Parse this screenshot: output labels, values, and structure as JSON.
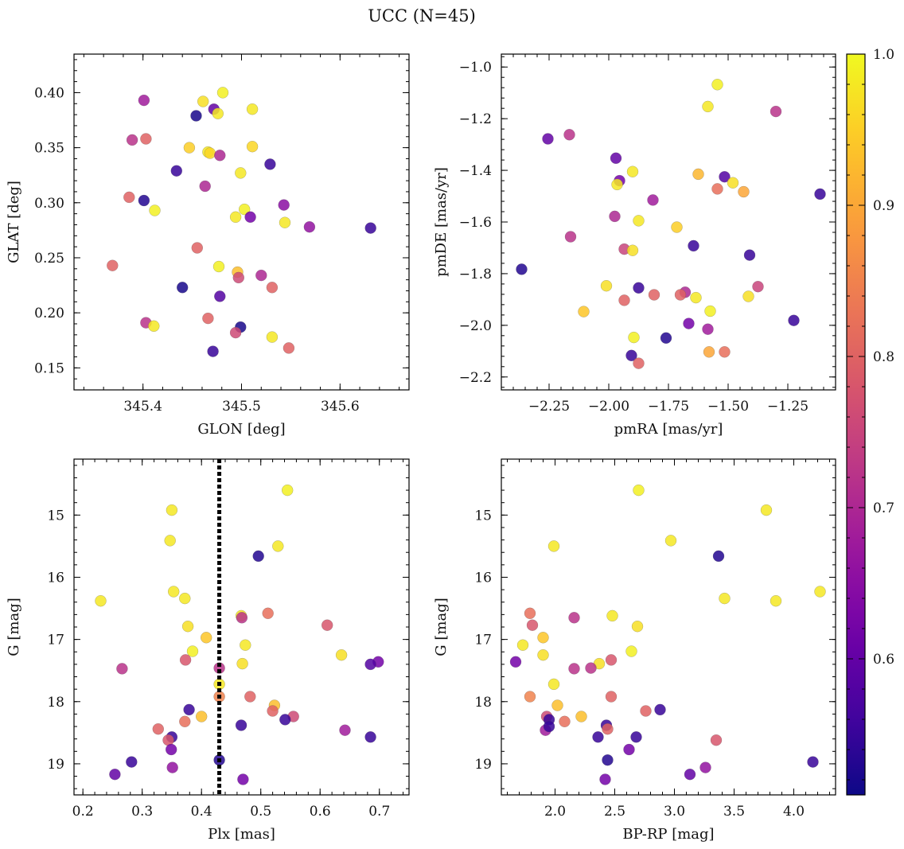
{
  "figure": {
    "title": "UCC (N=45)"
  },
  "colorbar": {
    "range": [
      0.51,
      1.0
    ],
    "ticks": [
      0.6,
      0.7,
      0.8,
      0.9,
      1.0
    ],
    "tick_labels": [
      "0.6",
      "0.7",
      "0.8",
      "0.9",
      "1.0"
    ],
    "colormap": "plasma",
    "palette": [
      "#0d0887",
      "#46039f",
      "#7201a8",
      "#9c179e",
      "#bd3786",
      "#d8576b",
      "#ed7953",
      "#fb9f3a",
      "#fdca26",
      "#f0f921"
    ]
  },
  "chart_data": [
    {
      "id": "sky",
      "type": "scatter",
      "xlabel": "GLON [deg]",
      "ylabel": "GLAT [deg]",
      "xlim": [
        345.33,
        345.67
      ],
      "ylim": [
        0.13,
        0.435
      ],
      "xticks": [
        345.4,
        345.5,
        345.6
      ],
      "xtick_labels": [
        "345.4",
        "345.5",
        "345.6"
      ],
      "yticks": [
        0.15,
        0.2,
        0.25,
        0.3,
        0.35,
        0.4
      ],
      "ytick_labels": [
        "0.15",
        "0.20",
        "0.25",
        "0.30",
        "0.35",
        "0.40"
      ],
      "points": [
        [
          345.401,
          0.393,
          0.68
        ],
        [
          345.461,
          0.392,
          0.97
        ],
        [
          345.481,
          0.4,
          0.99
        ],
        [
          345.454,
          0.379,
          0.52
        ],
        [
          345.472,
          0.385,
          0.6
        ],
        [
          345.476,
          0.381,
          0.98
        ],
        [
          345.511,
          0.385,
          0.98
        ],
        [
          345.389,
          0.357,
          0.72
        ],
        [
          345.403,
          0.358,
          0.8
        ],
        [
          345.447,
          0.35,
          0.95
        ],
        [
          345.466,
          0.346,
          0.98
        ],
        [
          345.468,
          0.345,
          0.96
        ],
        [
          345.478,
          0.343,
          0.7
        ],
        [
          345.511,
          0.351,
          0.96
        ],
        [
          345.434,
          0.329,
          0.55
        ],
        [
          345.499,
          0.327,
          0.98
        ],
        [
          345.529,
          0.335,
          0.55
        ],
        [
          345.463,
          0.315,
          0.7
        ],
        [
          345.386,
          0.305,
          0.8
        ],
        [
          345.401,
          0.302,
          0.53
        ],
        [
          345.412,
          0.293,
          0.99
        ],
        [
          345.503,
          0.294,
          0.99
        ],
        [
          345.494,
          0.287,
          0.98
        ],
        [
          345.509,
          0.287,
          0.62
        ],
        [
          345.543,
          0.298,
          0.65
        ],
        [
          345.544,
          0.282,
          0.98
        ],
        [
          345.569,
          0.278,
          0.66
        ],
        [
          345.631,
          0.277,
          0.55
        ],
        [
          345.455,
          0.259,
          0.8
        ],
        [
          345.369,
          0.243,
          0.8
        ],
        [
          345.477,
          0.242,
          0.99
        ],
        [
          345.496,
          0.237,
          0.93
        ],
        [
          345.497,
          0.232,
          0.76
        ],
        [
          345.52,
          0.234,
          0.7
        ],
        [
          345.531,
          0.223,
          0.8
        ],
        [
          345.44,
          0.223,
          0.52
        ],
        [
          345.478,
          0.215,
          0.58
        ],
        [
          345.466,
          0.195,
          0.8
        ],
        [
          345.403,
          0.191,
          0.72
        ],
        [
          345.411,
          0.188,
          0.98
        ],
        [
          345.499,
          0.187,
          0.52
        ],
        [
          345.494,
          0.182,
          0.76
        ],
        [
          345.531,
          0.178,
          0.98
        ],
        [
          345.548,
          0.168,
          0.8
        ],
        [
          345.471,
          0.165,
          0.55
        ]
      ]
    },
    {
      "id": "pm",
      "type": "scatter",
      "xlabel": "pmRA [mas/yr]",
      "ylabel": "pmDE [mas/yr]",
      "xlim": [
        -2.45,
        -1.05
      ],
      "ylim": [
        -2.25,
        -0.95
      ],
      "xticks": [
        -2.25,
        -2.0,
        -1.75,
        -1.5,
        -1.25
      ],
      "xtick_labels": [
        "−2.25",
        "−2.00",
        "−1.75",
        "−1.50",
        "−1.25"
      ],
      "yticks": [
        -2.2,
        -2.0,
        -1.8,
        -1.6,
        -1.4,
        -1.2,
        -1.0
      ],
      "ytick_labels": [
        "−2.2",
        "−2.0",
        "−1.8",
        "−1.6",
        "−1.4",
        "−1.2",
        "−1.0"
      ],
      "points": [
        [
          -1.545,
          -1.068,
          0.99
        ],
        [
          -1.585,
          -1.153,
          0.98
        ],
        [
          -1.3,
          -1.172,
          0.72
        ],
        [
          -2.165,
          -1.262,
          0.72
        ],
        [
          -2.255,
          -1.278,
          0.6
        ],
        [
          -1.97,
          -1.353,
          0.6
        ],
        [
          -1.625,
          -1.415,
          0.92
        ],
        [
          -1.515,
          -1.425,
          0.58
        ],
        [
          -1.9,
          -1.405,
          0.98
        ],
        [
          -1.955,
          -1.44,
          0.62
        ],
        [
          -1.965,
          -1.455,
          0.98
        ],
        [
          -1.545,
          -1.472,
          0.82
        ],
        [
          -1.48,
          -1.448,
          0.97
        ],
        [
          -1.435,
          -1.483,
          0.9
        ],
        [
          -1.115,
          -1.492,
          0.55
        ],
        [
          -1.815,
          -1.515,
          0.68
        ],
        [
          -1.975,
          -1.578,
          0.7
        ],
        [
          -1.875,
          -1.595,
          0.98
        ],
        [
          -1.715,
          -1.62,
          0.95
        ],
        [
          -2.16,
          -1.657,
          0.72
        ],
        [
          -1.645,
          -1.692,
          0.55
        ],
        [
          -1.935,
          -1.705,
          0.75
        ],
        [
          -1.9,
          -1.71,
          0.97
        ],
        [
          -1.41,
          -1.728,
          0.55
        ],
        [
          -2.365,
          -1.783,
          0.53
        ],
        [
          -2.01,
          -1.847,
          0.97
        ],
        [
          -1.875,
          -1.855,
          0.55
        ],
        [
          -1.375,
          -1.85,
          0.75
        ],
        [
          -1.68,
          -1.872,
          0.7
        ],
        [
          -1.7,
          -1.882,
          0.8
        ],
        [
          -1.81,
          -1.882,
          0.8
        ],
        [
          -1.635,
          -1.893,
          0.98
        ],
        [
          -1.935,
          -1.903,
          0.8
        ],
        [
          -1.415,
          -1.888,
          0.97
        ],
        [
          -2.105,
          -1.947,
          0.94
        ],
        [
          -1.575,
          -1.945,
          0.99
        ],
        [
          -1.665,
          -1.993,
          0.62
        ],
        [
          -1.225,
          -1.981,
          0.55
        ],
        [
          -1.585,
          -2.015,
          0.68
        ],
        [
          -1.895,
          -2.047,
          0.99
        ],
        [
          -1.76,
          -2.049,
          0.53
        ],
        [
          -1.905,
          -2.117,
          0.55
        ],
        [
          -1.58,
          -2.103,
          0.9
        ],
        [
          -1.515,
          -2.103,
          0.82
        ],
        [
          -1.875,
          -2.147,
          0.8
        ]
      ]
    },
    {
      "id": "plx",
      "type": "scatter",
      "xlabel": "Plx [mas]",
      "ylabel": "G [mag]",
      "xlim": [
        0.185,
        0.75
      ],
      "ylim": [
        19.5,
        14.1
      ],
      "y_inverted": true,
      "xticks": [
        0.2,
        0.3,
        0.4,
        0.5,
        0.6,
        0.7
      ],
      "xtick_labels": [
        "0.2",
        "0.3",
        "0.4",
        "0.5",
        "0.6",
        "0.7"
      ],
      "yticks": [
        15,
        16,
        17,
        18,
        19
      ],
      "ytick_labels": [
        "15",
        "16",
        "17",
        "18",
        "19"
      ],
      "vline": 0.43,
      "points": [
        [
          0.545,
          14.6,
          0.99
        ],
        [
          0.35,
          14.92,
          0.98
        ],
        [
          0.347,
          15.41,
          0.98
        ],
        [
          0.529,
          15.5,
          0.98
        ],
        [
          0.496,
          15.66,
          0.53
        ],
        [
          0.353,
          16.23,
          0.98
        ],
        [
          0.372,
          16.34,
          0.98
        ],
        [
          0.23,
          16.38,
          0.98
        ],
        [
          0.512,
          16.58,
          0.82
        ],
        [
          0.467,
          16.62,
          0.98
        ],
        [
          0.468,
          16.65,
          0.72
        ],
        [
          0.612,
          16.77,
          0.78
        ],
        [
          0.377,
          16.79,
          0.97
        ],
        [
          0.408,
          16.97,
          0.94
        ],
        [
          0.474,
          17.09,
          0.98
        ],
        [
          0.385,
          17.19,
          0.99
        ],
        [
          0.636,
          17.25,
          0.97
        ],
        [
          0.373,
          17.33,
          0.78
        ],
        [
          0.469,
          17.39,
          0.97
        ],
        [
          0.698,
          17.36,
          0.62
        ],
        [
          0.685,
          17.4,
          0.58
        ],
        [
          0.266,
          17.47,
          0.72
        ],
        [
          0.43,
          17.46,
          0.72
        ],
        [
          0.43,
          17.72,
          0.98
        ],
        [
          0.43,
          17.92,
          0.85
        ],
        [
          0.482,
          17.92,
          0.8
        ],
        [
          0.523,
          18.06,
          0.93
        ],
        [
          0.52,
          18.15,
          0.8
        ],
        [
          0.379,
          18.13,
          0.55
        ],
        [
          0.4,
          18.24,
          0.93
        ],
        [
          0.555,
          18.24,
          0.76
        ],
        [
          0.541,
          18.29,
          0.55
        ],
        [
          0.372,
          18.32,
          0.82
        ],
        [
          0.467,
          18.38,
          0.55
        ],
        [
          0.327,
          18.44,
          0.8
        ],
        [
          0.642,
          18.46,
          0.68
        ],
        [
          0.35,
          18.57,
          0.55
        ],
        [
          0.685,
          18.57,
          0.55
        ],
        [
          0.344,
          18.62,
          0.78
        ],
        [
          0.349,
          18.77,
          0.62
        ],
        [
          0.43,
          18.94,
          0.53
        ],
        [
          0.282,
          18.97,
          0.55
        ],
        [
          0.351,
          19.06,
          0.66
        ],
        [
          0.254,
          19.17,
          0.6
        ],
        [
          0.47,
          19.25,
          0.62
        ]
      ]
    },
    {
      "id": "cmd",
      "type": "scatter",
      "xlabel": "BP-RP [mag]",
      "ylabel": "G [mag]",
      "xlim": [
        1.55,
        4.35
      ],
      "ylim": [
        19.5,
        14.1
      ],
      "y_inverted": true,
      "xticks": [
        2.0,
        2.5,
        3.0,
        3.5,
        4.0
      ],
      "xtick_labels": [
        "2.0",
        "2.5",
        "3.0",
        "3.5",
        "4.0"
      ],
      "yticks": [
        15,
        16,
        17,
        18,
        19
      ],
      "ytick_labels": [
        "15",
        "16",
        "17",
        "18",
        "19"
      ],
      "points": [
        [
          2.7,
          14.6,
          0.99
        ],
        [
          3.77,
          14.92,
          0.98
        ],
        [
          2.97,
          15.41,
          0.98
        ],
        [
          1.99,
          15.5,
          0.98
        ],
        [
          3.37,
          15.66,
          0.53
        ],
        [
          4.22,
          16.23,
          0.98
        ],
        [
          3.42,
          16.34,
          0.98
        ],
        [
          3.85,
          16.38,
          0.98
        ],
        [
          1.79,
          16.58,
          0.82
        ],
        [
          2.48,
          16.62,
          0.98
        ],
        [
          2.16,
          16.65,
          0.72
        ],
        [
          1.81,
          16.77,
          0.78
        ],
        [
          2.69,
          16.79,
          0.97
        ],
        [
          1.9,
          16.97,
          0.94
        ],
        [
          1.73,
          17.09,
          0.98
        ],
        [
          2.64,
          17.19,
          0.99
        ],
        [
          1.9,
          17.25,
          0.97
        ],
        [
          2.47,
          17.33,
          0.78
        ],
        [
          2.37,
          17.39,
          0.97
        ],
        [
          1.67,
          17.36,
          0.62
        ],
        [
          2.16,
          17.47,
          0.72
        ],
        [
          2.3,
          17.46,
          0.72
        ],
        [
          1.99,
          17.72,
          0.98
        ],
        [
          1.79,
          17.92,
          0.85
        ],
        [
          2.47,
          17.92,
          0.8
        ],
        [
          2.02,
          18.06,
          0.93
        ],
        [
          2.76,
          18.15,
          0.8
        ],
        [
          2.88,
          18.13,
          0.55
        ],
        [
          2.22,
          18.24,
          0.93
        ],
        [
          1.93,
          18.24,
          0.76
        ],
        [
          1.95,
          18.29,
          0.55
        ],
        [
          2.08,
          18.32,
          0.82
        ],
        [
          2.43,
          18.38,
          0.55
        ],
        [
          2.44,
          18.44,
          0.8
        ],
        [
          1.92,
          18.46,
          0.68
        ],
        [
          1.95,
          18.4,
          0.55
        ],
        [
          2.36,
          18.57,
          0.55
        ],
        [
          2.68,
          18.57,
          0.55
        ],
        [
          3.35,
          18.62,
          0.78
        ],
        [
          2.62,
          18.77,
          0.62
        ],
        [
          2.44,
          18.94,
          0.53
        ],
        [
          4.16,
          18.97,
          0.55
        ],
        [
          3.26,
          19.06,
          0.66
        ],
        [
          3.13,
          19.17,
          0.6
        ],
        [
          2.42,
          19.25,
          0.62
        ]
      ]
    }
  ]
}
